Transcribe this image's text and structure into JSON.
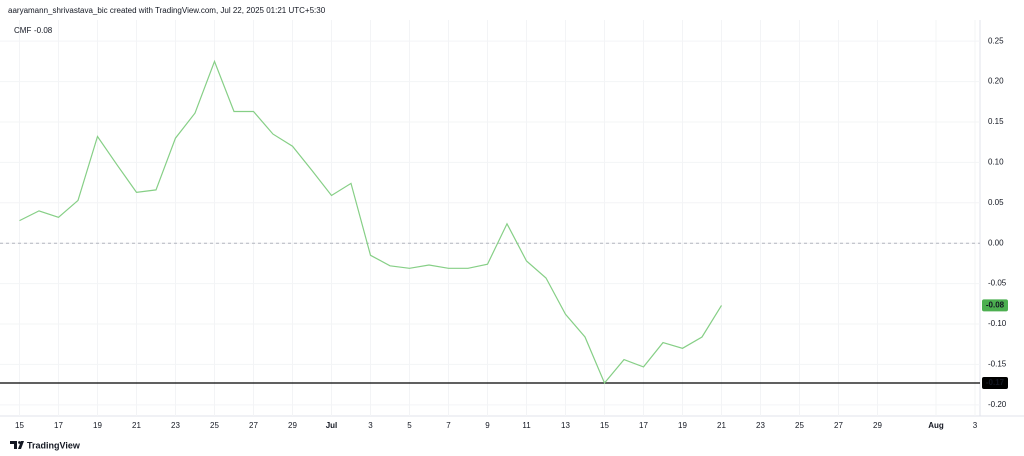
{
  "header": {
    "text": "aaryamann_shrivastava_bic created with TradingView.com, Jul 22, 2025 01:21 UTC+5:30"
  },
  "footer": {
    "brand": "TradingView"
  },
  "chart_data": {
    "type": "line",
    "x": [
      "Jun 15",
      "Jun 16",
      "Jun 17",
      "Jun 18",
      "Jun 19",
      "Jun 20",
      "Jun 21",
      "Jun 22",
      "Jun 23",
      "Jun 24",
      "Jun 25",
      "Jun 26",
      "Jun 27",
      "Jun 28",
      "Jun 29",
      "Jun 30",
      "Jul 1",
      "Jul 2",
      "Jul 3",
      "Jul 4",
      "Jul 5",
      "Jul 6",
      "Jul 7",
      "Jul 8",
      "Jul 9",
      "Jul 10",
      "Jul 11",
      "Jul 12",
      "Jul 13",
      "Jul 14",
      "Jul 15",
      "Jul 16",
      "Jul 17",
      "Jul 18",
      "Jul 19",
      "Jul 20",
      "Jul 21"
    ],
    "series": [
      {
        "name": "CMF",
        "color": "#86cf86",
        "values": [
          0.028,
          0.04,
          0.032,
          0.053,
          0.132,
          0.097,
          0.063,
          0.066,
          0.13,
          0.161,
          0.225,
          0.163,
          0.163,
          0.135,
          0.12,
          0.09,
          0.059,
          0.074,
          -0.015,
          -0.028,
          -0.031,
          -0.027,
          -0.031,
          -0.031,
          -0.026,
          0.024,
          -0.022,
          -0.043,
          -0.088,
          -0.116,
          -0.173,
          -0.144,
          -0.153,
          -0.123,
          -0.13,
          -0.116,
          -0.077
        ],
        "value_labels": [
          null,
          null,
          null,
          null,
          null,
          null,
          null,
          null,
          null,
          null,
          null,
          null,
          null,
          null,
          null,
          null,
          null,
          null,
          null,
          null,
          null,
          null,
          null,
          null,
          null,
          null,
          null,
          null,
          null,
          null,
          null,
          null,
          null,
          null,
          null,
          null,
          "-0.08"
        ],
        "label_color": "#4caf50"
      }
    ],
    "hline": {
      "value": -0.173,
      "label": "-0.17",
      "color": "#000000"
    },
    "xlim": [
      "Jun 14",
      "Aug 3"
    ],
    "xticks": [
      {
        "value": "Jun 15",
        "label": "15"
      },
      {
        "value": "Jun 17",
        "label": "17"
      },
      {
        "value": "Jun 19",
        "label": "19"
      },
      {
        "value": "Jun 21",
        "label": "21"
      },
      {
        "value": "Jun 23",
        "label": "23"
      },
      {
        "value": "Jun 25",
        "label": "25"
      },
      {
        "value": "Jun 27",
        "label": "27"
      },
      {
        "value": "Jun 29",
        "label": "29"
      },
      {
        "value": "Jul 1",
        "label": "Jul"
      },
      {
        "value": "Jul 3",
        "label": "3"
      },
      {
        "value": "Jul 5",
        "label": "5"
      },
      {
        "value": "Jul 7",
        "label": "7"
      },
      {
        "value": "Jul 9",
        "label": "9"
      },
      {
        "value": "Jul 11",
        "label": "11"
      },
      {
        "value": "Jul 13",
        "label": "13"
      },
      {
        "value": "Jul 15",
        "label": "15"
      },
      {
        "value": "Jul 17",
        "label": "17"
      },
      {
        "value": "Jul 19",
        "label": "19"
      },
      {
        "value": "Jul 21",
        "label": "21"
      },
      {
        "value": "Jul 23",
        "label": "23"
      },
      {
        "value": "Jul 25",
        "label": "25"
      },
      {
        "value": "Jul 27",
        "label": "27"
      },
      {
        "value": "Jul 29",
        "label": "29"
      },
      {
        "value": "Aug 1",
        "label": "Aug"
      },
      {
        "value": "Aug 3",
        "label": "3"
      }
    ],
    "ylim": [
      -0.22,
      0.27
    ],
    "yticks": [
      0.25,
      {
        "value": 0.2,
        "label": "0.20"
      },
      0.15,
      {
        "value": 0.1,
        "label": "0.10"
      },
      0.05,
      {
        "value": 0,
        "label": "0.00"
      },
      -0.05,
      {
        "value": -0.1,
        "label": "-0.10"
      },
      -0.15,
      {
        "value": -0.2,
        "label": "-0.20"
      }
    ],
    "grid": true
  }
}
